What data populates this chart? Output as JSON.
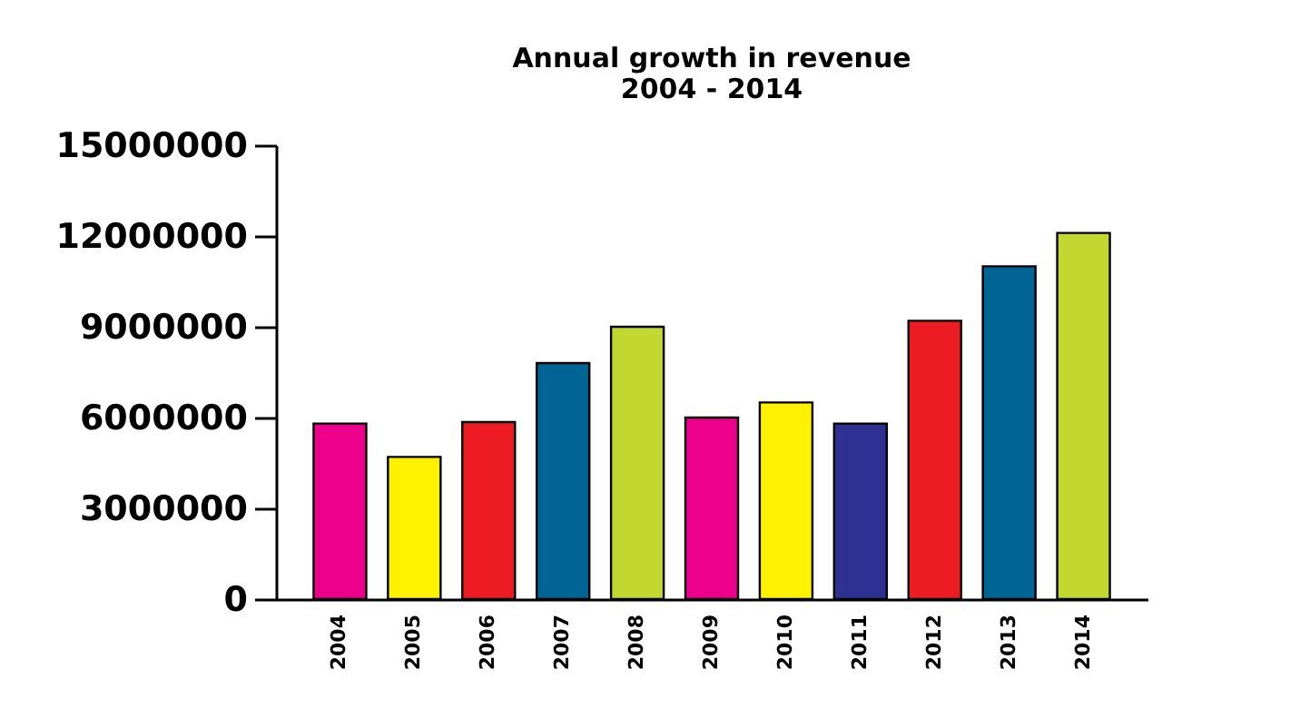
{
  "chart_data": {
    "type": "bar",
    "title": [
      "Annual growth in revenue",
      "2004 - 2014"
    ],
    "categories": [
      "2004",
      "2005",
      "2006",
      "2007",
      "2008",
      "2009",
      "2010",
      "2011",
      "2012",
      "2013",
      "2014"
    ],
    "values": [
      5800000,
      4700000,
      5850000,
      7800000,
      9000000,
      6000000,
      6500000,
      5800000,
      9200000,
      11000000,
      12100000
    ],
    "colors": [
      "#ec008c",
      "#fff200",
      "#ed1c24",
      "#006595",
      "#c2d72f",
      "#ec008c",
      "#fff200",
      "#2e3192",
      "#ed1c24",
      "#006595",
      "#c2d72f"
    ],
    "ylim": [
      0,
      15000000
    ],
    "yticks": [
      0,
      3000000,
      6000000,
      9000000,
      12000000,
      15000000
    ],
    "grid": false,
    "legend": false
  }
}
